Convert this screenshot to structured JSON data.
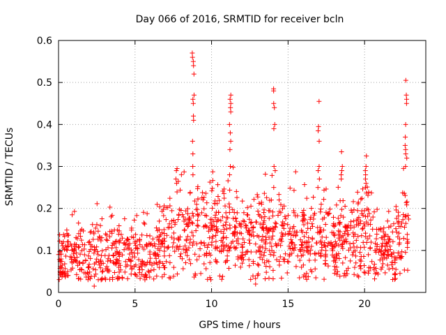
{
  "chart_data": {
    "type": "scatter",
    "title": "Day 066 of 2016, SRMTID for receiver bcln",
    "xlabel": "GPS time / hours",
    "ylabel": "SRMTID / TECUs",
    "xlim": [
      0,
      24
    ],
    "ylim": [
      0,
      0.6
    ],
    "xticks": [
      "0",
      "5",
      "10",
      "15",
      "20"
    ],
    "yticks": [
      "0",
      "0.1",
      "0.2",
      "0.3",
      "0.4",
      "0.5",
      "0.6"
    ],
    "grid": true,
    "marker": "plus",
    "series_color": "#ff0000",
    "baseline": [
      [
        0,
        0.07
      ],
      [
        1,
        0.08
      ],
      [
        2,
        0.08
      ],
      [
        3,
        0.075
      ],
      [
        4,
        0.08
      ],
      [
        5,
        0.09
      ],
      [
        6,
        0.1
      ],
      [
        7,
        0.12
      ],
      [
        8,
        0.14
      ],
      [
        9,
        0.15
      ],
      [
        10,
        0.14
      ],
      [
        11,
        0.15
      ],
      [
        12,
        0.14
      ],
      [
        13,
        0.13
      ],
      [
        14,
        0.13
      ],
      [
        15,
        0.13
      ],
      [
        16,
        0.12
      ],
      [
        17,
        0.13
      ],
      [
        18,
        0.13
      ],
      [
        19,
        0.12
      ],
      [
        20,
        0.15
      ],
      [
        21,
        0.1
      ],
      [
        22,
        0.1
      ],
      [
        22.5,
        0.15
      ],
      [
        23,
        0.15
      ]
    ],
    "spikes": [
      {
        "x": 8.8,
        "y_values": [
          0.57,
          0.56,
          0.55,
          0.54,
          0.52,
          0.47,
          0.46,
          0.45,
          0.42,
          0.41,
          0.36,
          0.33,
          0.3,
          0.28
        ]
      },
      {
        "x": 11.2,
        "y_values": [
          0.47,
          0.46,
          0.45,
          0.44,
          0.43,
          0.4,
          0.38,
          0.36,
          0.34,
          0.3,
          0.28
        ]
      },
      {
        "x": 14.1,
        "y_values": [
          0.485,
          0.48,
          0.45,
          0.44,
          0.4,
          0.39,
          0.3,
          0.29,
          0.25
        ]
      },
      {
        "x": 17.0,
        "y_values": [
          0.455,
          0.395,
          0.385,
          0.36,
          0.3,
          0.29,
          0.27,
          0.25
        ]
      },
      {
        "x": 22.7,
        "y_values": [
          0.505,
          0.47,
          0.46,
          0.45,
          0.4,
          0.37,
          0.35,
          0.34,
          0.33,
          0.32,
          0.3
        ]
      },
      {
        "x": 20.1,
        "y_values": [
          0.325,
          0.3,
          0.29,
          0.28,
          0.27,
          0.26,
          0.25
        ]
      },
      {
        "x": 18.5,
        "y_values": [
          0.335,
          0.3,
          0.29,
          0.28,
          0.27
        ]
      },
      {
        "x": 7.7,
        "y_values": [
          0.295,
          0.29,
          0.27,
          0.26
        ]
      },
      {
        "x": 2.3,
        "y_values": [
          0.015
        ]
      },
      {
        "x": 12.9,
        "y_values": [
          0.02
        ]
      }
    ],
    "n_background_points": 1400
  }
}
